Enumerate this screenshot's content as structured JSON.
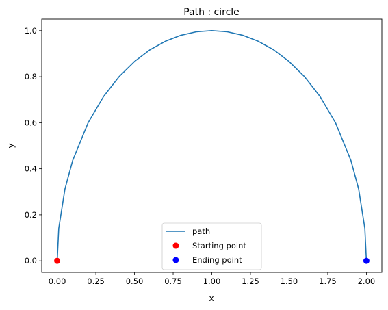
{
  "chart_data": {
    "type": "line",
    "title": "Path : circle",
    "xlabel": "x",
    "ylabel": "y",
    "xlim": [
      -0.1,
      2.1
    ],
    "ylim": [
      -0.05,
      1.05
    ],
    "xticks": [
      "0.00",
      "0.25",
      "0.50",
      "0.75",
      "1.00",
      "1.25",
      "1.50",
      "1.75",
      "2.00"
    ],
    "yticks": [
      "0.0",
      "0.2",
      "0.4",
      "0.6",
      "0.8",
      "1.0"
    ],
    "grid": false,
    "legend_position": "bottom-center",
    "series": [
      {
        "name": "path",
        "kind": "line",
        "color": "#1f77b4",
        "shape": "upper semicircle centered at (1, 0) with radius 1",
        "x": [
          0.0,
          0.01,
          0.05,
          0.1,
          0.2,
          0.3,
          0.4,
          0.5,
          0.6,
          0.7,
          0.8,
          0.9,
          1.0,
          1.1,
          1.2,
          1.3,
          1.4,
          1.5,
          1.6,
          1.7,
          1.8,
          1.9,
          1.95,
          1.99,
          2.0
        ],
        "y": [
          0.0,
          0.141,
          0.312,
          0.436,
          0.6,
          0.714,
          0.8,
          0.866,
          0.917,
          0.954,
          0.98,
          0.995,
          1.0,
          0.995,
          0.98,
          0.954,
          0.917,
          0.866,
          0.8,
          0.714,
          0.6,
          0.436,
          0.312,
          0.141,
          0.0
        ]
      },
      {
        "name": "Starting point",
        "kind": "scatter",
        "color": "#ff0000",
        "x": [
          0.0
        ],
        "y": [
          0.0
        ]
      },
      {
        "name": "Ending point",
        "kind": "scatter",
        "color": "#0000ff",
        "x": [
          2.0
        ],
        "y": [
          0.0
        ]
      }
    ]
  }
}
